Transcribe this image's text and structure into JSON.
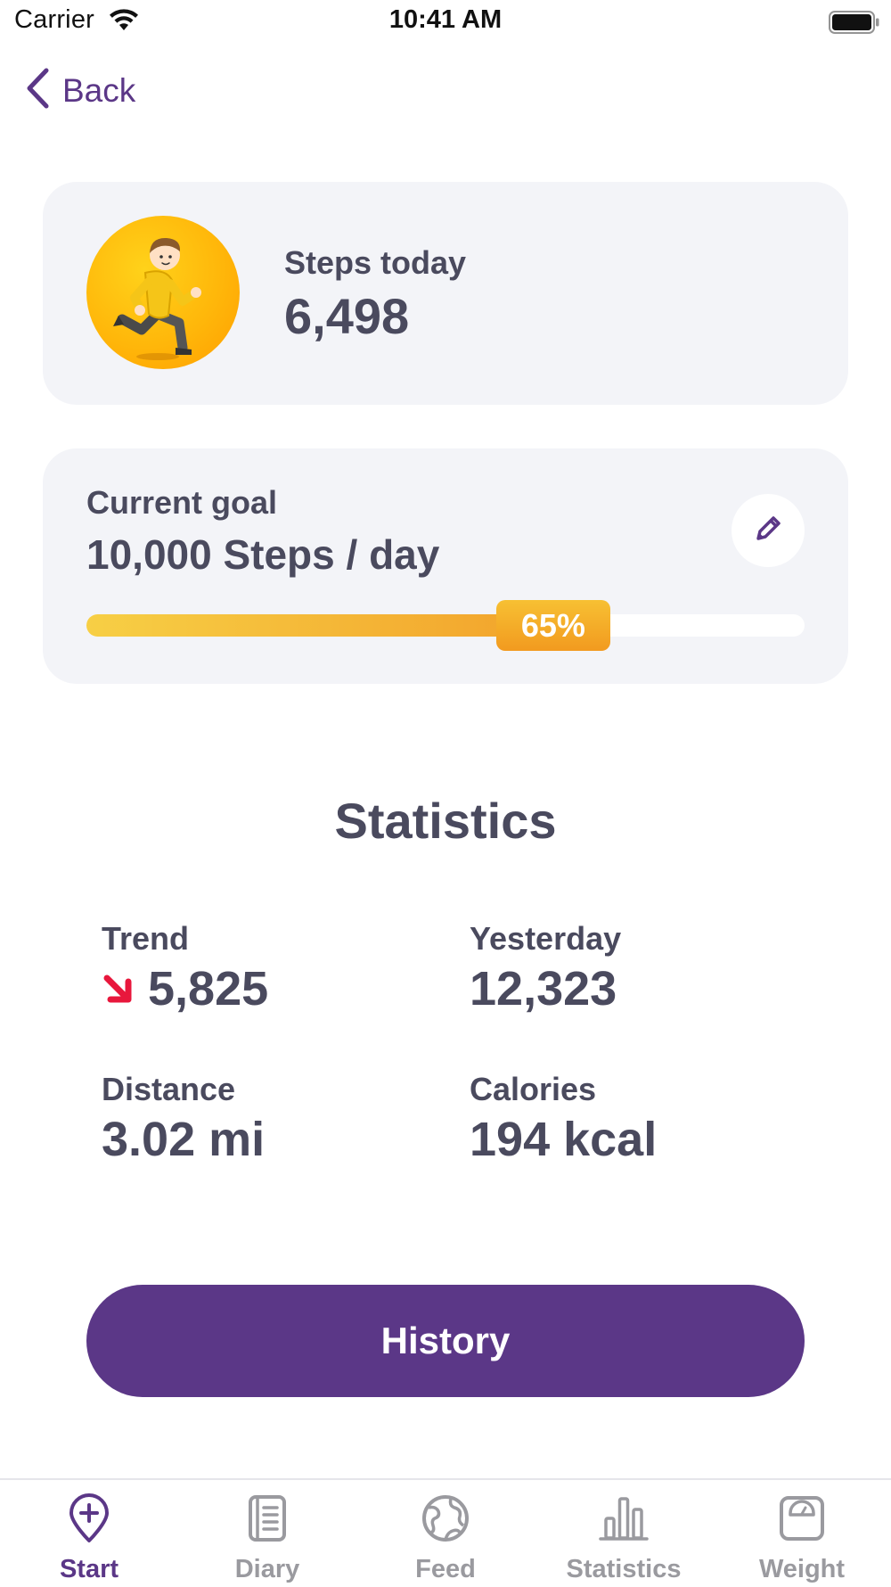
{
  "status_bar": {
    "carrier": "Carrier",
    "time": "10:41 AM"
  },
  "nav": {
    "back_label": "Back"
  },
  "steps_card": {
    "label": "Steps today",
    "value": "6,498",
    "avatar_icon": "running-man-icon"
  },
  "goal_card": {
    "label": "Current goal",
    "value": "10,000 Steps / day",
    "progress_percent": 65,
    "progress_label": "65%",
    "edit_icon": "pencil-icon"
  },
  "statistics": {
    "title": "Statistics",
    "trend": {
      "label": "Trend",
      "value": "5,825",
      "direction_icon": "arrow-down-right-icon"
    },
    "yesterday": {
      "label": "Yesterday",
      "value": "12,323"
    },
    "distance": {
      "label": "Distance",
      "value": "3.02 mi"
    },
    "calories": {
      "label": "Calories",
      "value": "194 kcal"
    }
  },
  "history_button": {
    "label": "History"
  },
  "tab_bar": {
    "tabs": [
      {
        "label": "Start",
        "icon": "map-pin-plus-icon",
        "active": true
      },
      {
        "label": "Diary",
        "icon": "diary-icon",
        "active": false
      },
      {
        "label": "Feed",
        "icon": "globe-icon",
        "active": false
      },
      {
        "label": "Statistics",
        "icon": "bar-chart-icon",
        "active": false
      },
      {
        "label": "Weight",
        "icon": "scale-icon",
        "active": false
      }
    ]
  },
  "colors": {
    "brand_purple": "#5b3787",
    "card_background": "#f3f4f8",
    "text_dark": "#4a4a5e",
    "progress_orange": "#f29a1f",
    "trend_down_red": "#e8173c",
    "inactive_tab": "#9a9a9f"
  }
}
